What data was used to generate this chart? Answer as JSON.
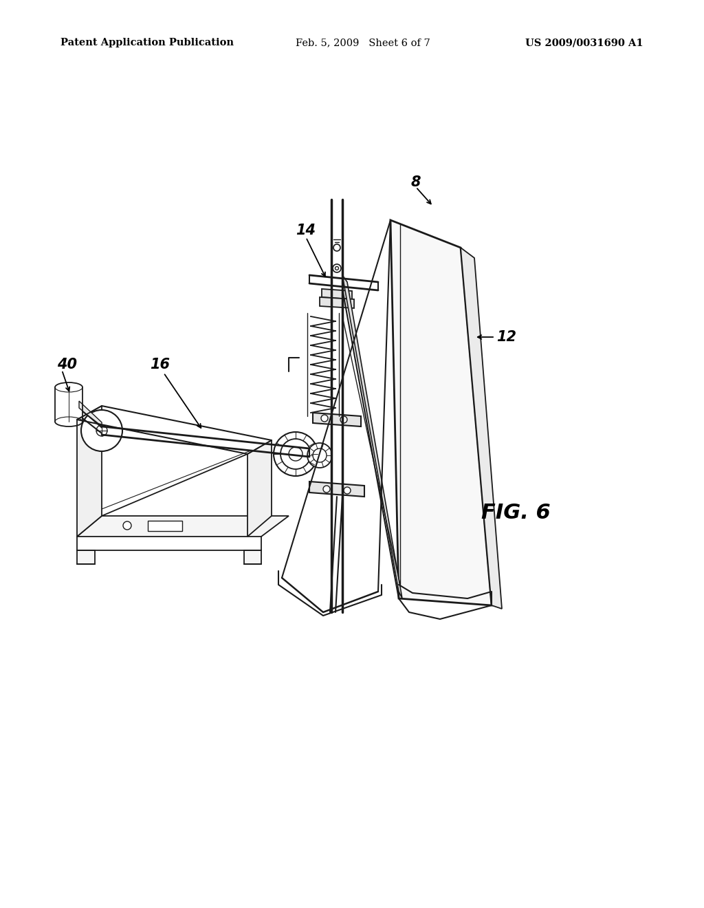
{
  "background_color": "#ffffff",
  "header_left": "Patent Application Publication",
  "header_mid": "Feb. 5, 2009   Sheet 6 of 7",
  "header_right": "US 2009/0031690 A1",
  "fig_label": "FIG. 6",
  "line_color": "#1a1a1a",
  "text_color": "#111111"
}
